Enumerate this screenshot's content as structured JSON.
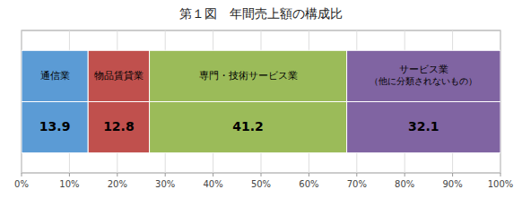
{
  "chart_data": {
    "type": "bar",
    "orientation": "horizontal",
    "stacked": true,
    "data_labels": true,
    "grid": true,
    "title": "第１図　年間売上額の構成比",
    "categories": [
      null
    ],
    "series": [
      {
        "name": "通信業",
        "color": "#5B9BD5",
        "values": [
          13.9
        ]
      },
      {
        "name": "物品賃貸業",
        "color": "#C0504D",
        "values": [
          12.8
        ]
      },
      {
        "name": "専門・技術サービス業",
        "color": "#9BBB59",
        "values": [
          41.2
        ]
      },
      {
        "name": "サービス業\n（他に分類されないもの）",
        "color": "#8064A2",
        "values": [
          32.1
        ]
      }
    ],
    "xlim": [
      0,
      100
    ],
    "xticks": [
      {
        "value": 0,
        "label": "0%"
      },
      {
        "value": 10,
        "label": "10%"
      },
      {
        "value": 20,
        "label": "20%"
      },
      {
        "value": 30,
        "label": "30%"
      },
      {
        "value": 40,
        "label": "40%"
      },
      {
        "value": 50,
        "label": "50%"
      },
      {
        "value": 60,
        "label": "60%"
      },
      {
        "value": 70,
        "label": "70%"
      },
      {
        "value": 80,
        "label": "80%"
      },
      {
        "value": 90,
        "label": "90%"
      },
      {
        "value": 100,
        "label": "100%"
      }
    ]
  }
}
